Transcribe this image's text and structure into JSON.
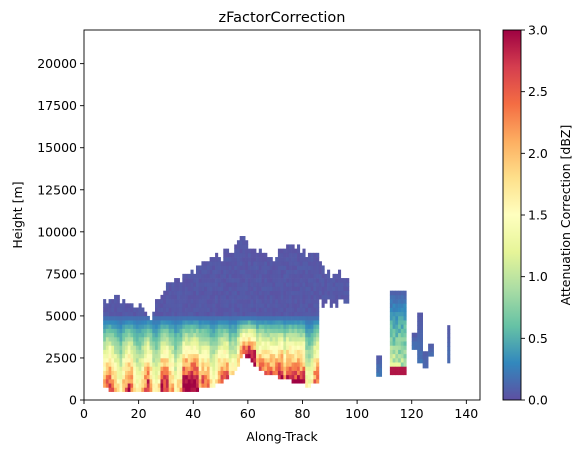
{
  "chart_data": {
    "type": "heatmap",
    "title": "zFactorCorrection",
    "xlabel": "Along-Track",
    "ylabel": "Height [m]",
    "xlim": [
      0,
      145
    ],
    "ylim": [
      0,
      22000
    ],
    "x_ticks": [
      0,
      20,
      40,
      60,
      80,
      100,
      120,
      140
    ],
    "x_tick_labels": [
      "0",
      "20",
      "40",
      "60",
      "80",
      "100",
      "120",
      "140"
    ],
    "y_ticks": [
      0,
      2500,
      5000,
      7500,
      10000,
      12500,
      15000,
      17500,
      20000
    ],
    "y_tick_labels": [
      "0",
      "2500",
      "5000",
      "7500",
      "10000",
      "12500",
      "15000",
      "17500",
      "20000"
    ],
    "colormap": "Spectral_r",
    "colorbar": {
      "label": "Attenuation Correction [dBZ]",
      "range": [
        0.0,
        3.0
      ],
      "ticks": [
        0.0,
        0.5,
        1.0,
        1.5,
        2.0,
        2.5,
        3.0
      ],
      "tick_labels": [
        "0.0",
        "0.5",
        "1.0",
        "1.5",
        "2.0",
        "2.5",
        "3.0"
      ]
    },
    "main_cloud": {
      "x_range": [
        7,
        97
      ],
      "top_profile": [
        [
          7,
          5700
        ],
        [
          12,
          5900
        ],
        [
          16,
          5700
        ],
        [
          18,
          5200
        ],
        [
          20,
          5600
        ],
        [
          24,
          4700
        ],
        [
          26,
          5800
        ],
        [
          28,
          6400
        ],
        [
          30,
          6700
        ],
        [
          34,
          7000
        ],
        [
          38,
          7200
        ],
        [
          42,
          7800
        ],
        [
          46,
          8200
        ],
        [
          50,
          8500
        ],
        [
          54,
          9000
        ],
        [
          57,
          9400
        ],
        [
          60,
          9100
        ],
        [
          64,
          8900
        ],
        [
          68,
          8100
        ],
        [
          72,
          8800
        ],
        [
          76,
          9000
        ],
        [
          80,
          8700
        ],
        [
          84,
          8400
        ],
        [
          86,
          8100
        ],
        [
          88,
          7400
        ],
        [
          92,
          7600
        ],
        [
          95,
          7200
        ],
        [
          97,
          6900
        ]
      ],
      "base_profile": [
        [
          7,
          900
        ],
        [
          10,
          600
        ],
        [
          28,
          700
        ],
        [
          36,
          650
        ],
        [
          44,
          800
        ],
        [
          50,
          1100
        ],
        [
          54,
          1700
        ],
        [
          56,
          2100
        ],
        [
          58,
          2900
        ],
        [
          62,
          2100
        ],
        [
          66,
          1700
        ],
        [
          70,
          1500
        ],
        [
          74,
          1300
        ],
        [
          78,
          1100
        ],
        [
          82,
          900
        ],
        [
          85,
          1200
        ],
        [
          86,
          1400
        ]
      ],
      "precip_base_x": 86,
      "anvil_base": 4800,
      "max_correction": 3.0
    },
    "isolated_cells": [
      {
        "x": [
          107,
          109
        ],
        "base": 1400,
        "top": 2500,
        "max_value": 0.5
      },
      {
        "x": [
          112,
          118
        ],
        "base": 1500,
        "top": 6500,
        "max_value": 3.0
      },
      {
        "x": [
          120,
          122
        ],
        "base": 3000,
        "top": 3800,
        "max_value": 0.4
      },
      {
        "x": [
          122,
          124
        ],
        "base": 2200,
        "top": 5000,
        "max_value": 0.4
      },
      {
        "x": [
          124,
          126
        ],
        "base": 1900,
        "top": 2900,
        "max_value": 0.3
      },
      {
        "x": [
          126,
          128
        ],
        "base": 2600,
        "top": 3300,
        "max_value": 0.3
      },
      {
        "x": [
          133,
          134
        ],
        "base": 2200,
        "top": 4400,
        "max_value": 0.3
      }
    ]
  }
}
